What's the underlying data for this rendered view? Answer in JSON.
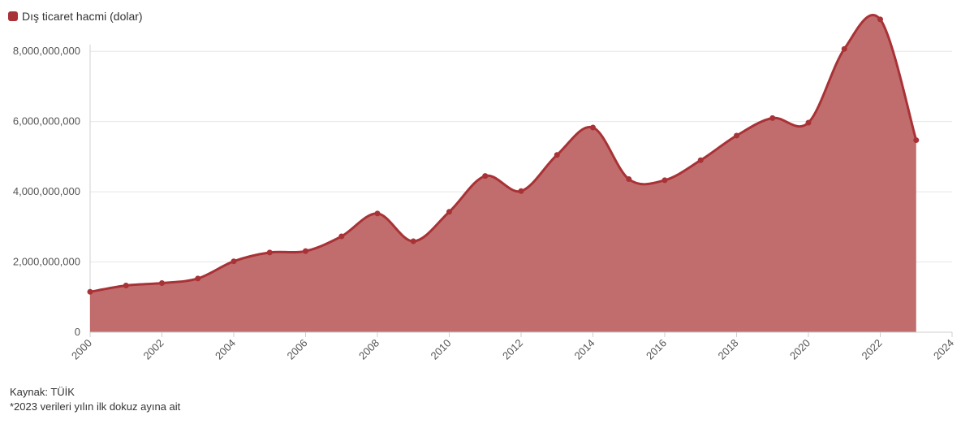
{
  "legend": {
    "label": "Dış ticaret hacmi (dolar)",
    "color": "#a83236"
  },
  "chart_data": {
    "type": "area",
    "title": "",
    "xlabel": "",
    "ylabel": "",
    "xlim": [
      2000,
      2024
    ],
    "ylim": [
      0,
      9000000000
    ],
    "grid": true,
    "legend_position": "top-left",
    "x_ticks": [
      "2000",
      "2002",
      "2004",
      "2006",
      "2008",
      "2010",
      "2012",
      "2014",
      "2016",
      "2018",
      "2020",
      "2022",
      "2024"
    ],
    "y_ticks": [
      "0",
      "2,000,000,000",
      "4,000,000,000",
      "6,000,000,000",
      "8,000,000,000"
    ],
    "series": [
      {
        "name": "Dış ticaret hacmi (dolar)",
        "color": "#a83236",
        "fill": "#c26d6d",
        "x": [
          2000,
          2001,
          2002,
          2003,
          2004,
          2005,
          2006,
          2007,
          2008,
          2009,
          2010,
          2011,
          2012,
          2013,
          2014,
          2015,
          2016,
          2017,
          2018,
          2019,
          2020,
          2021,
          2022,
          2023
        ],
        "y": [
          1150000000,
          1330000000,
          1400000000,
          1530000000,
          2020000000,
          2270000000,
          2310000000,
          2730000000,
          3380000000,
          2590000000,
          3430000000,
          4450000000,
          4020000000,
          5050000000,
          5830000000,
          4360000000,
          4330000000,
          4900000000,
          5600000000,
          6100000000,
          5970000000,
          8070000000,
          8910000000,
          5470000000
        ]
      }
    ]
  },
  "footer": {
    "source": "Kaynak: TÜİK",
    "note": "*2023 verileri yılın ilk dokuz ayına ait"
  }
}
